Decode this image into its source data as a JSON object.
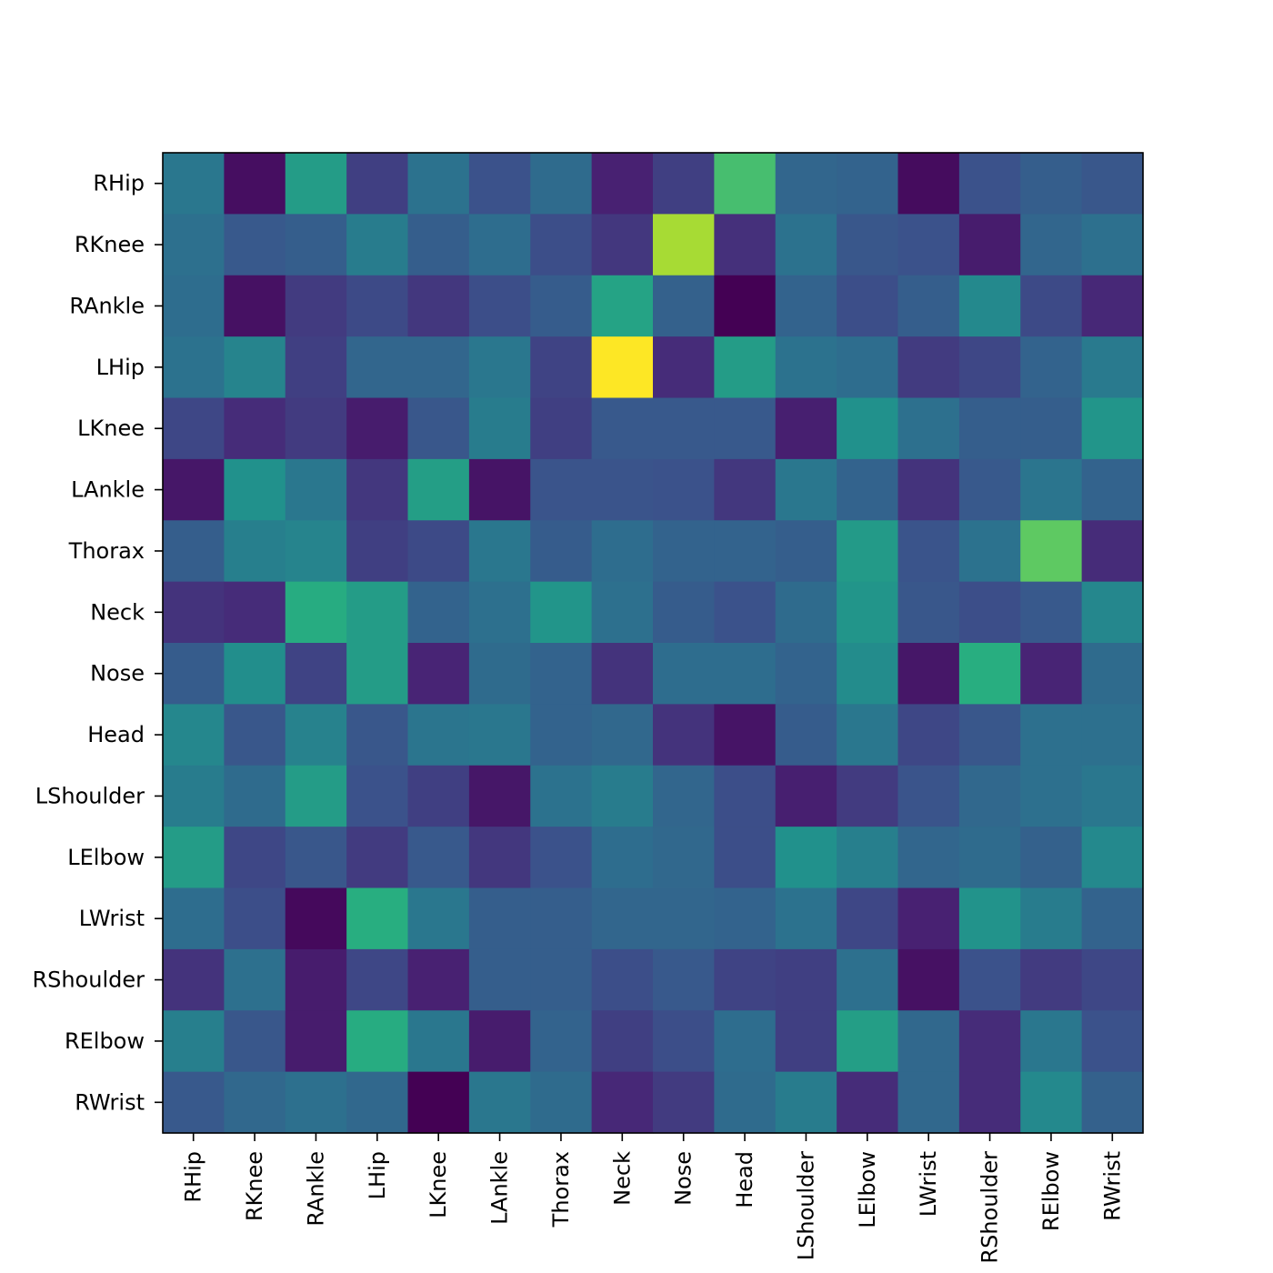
{
  "chart_data": {
    "type": "heatmap",
    "title": "",
    "xlabel": "",
    "ylabel": "",
    "colormap": "viridis",
    "value_range": [
      0,
      1
    ],
    "colorbar": false,
    "grid": false,
    "rows": [
      "RHip",
      "RKnee",
      "RAnkle",
      "LHip",
      "LKnee",
      "LAnkle",
      "Thorax",
      "Neck",
      "Nose",
      "Head",
      "LShoulder",
      "LElbow",
      "LWrist",
      "RShoulder",
      "RElbow",
      "RWrist"
    ],
    "columns": [
      "RHip",
      "RKnee",
      "RAnkle",
      "LHip",
      "LKnee",
      "LAnkle",
      "Thorax",
      "Neck",
      "Nose",
      "Head",
      "LShoulder",
      "LElbow",
      "LWrist",
      "RShoulder",
      "RElbow",
      "RWrist"
    ],
    "values": [
      [
        0.4,
        0.05,
        0.55,
        0.2,
        0.38,
        0.25,
        0.35,
        0.12,
        0.2,
        0.7,
        0.33,
        0.32,
        0.04,
        0.25,
        0.3,
        0.27
      ],
      [
        0.37,
        0.28,
        0.3,
        0.42,
        0.3,
        0.36,
        0.24,
        0.18,
        0.87,
        0.16,
        0.38,
        0.27,
        0.25,
        0.1,
        0.33,
        0.37
      ],
      [
        0.36,
        0.06,
        0.19,
        0.23,
        0.18,
        0.24,
        0.29,
        0.58,
        0.31,
        0.0,
        0.32,
        0.24,
        0.3,
        0.47,
        0.23,
        0.14
      ],
      [
        0.38,
        0.45,
        0.2,
        0.33,
        0.33,
        0.4,
        0.21,
        1.0,
        0.15,
        0.55,
        0.38,
        0.36,
        0.19,
        0.22,
        0.32,
        0.41
      ],
      [
        0.22,
        0.15,
        0.19,
        0.1,
        0.27,
        0.42,
        0.2,
        0.28,
        0.28,
        0.28,
        0.11,
        0.5,
        0.37,
        0.3,
        0.3,
        0.52
      ],
      [
        0.08,
        0.5,
        0.4,
        0.18,
        0.56,
        0.07,
        0.26,
        0.26,
        0.25,
        0.18,
        0.4,
        0.32,
        0.17,
        0.28,
        0.39,
        0.32
      ],
      [
        0.3,
        0.43,
        0.45,
        0.2,
        0.23,
        0.4,
        0.29,
        0.36,
        0.32,
        0.32,
        0.3,
        0.54,
        0.26,
        0.38,
        0.75,
        0.15
      ],
      [
        0.17,
        0.15,
        0.62,
        0.55,
        0.32,
        0.37,
        0.52,
        0.37,
        0.29,
        0.25,
        0.35,
        0.52,
        0.27,
        0.24,
        0.28,
        0.46
      ],
      [
        0.29,
        0.49,
        0.21,
        0.55,
        0.13,
        0.35,
        0.32,
        0.17,
        0.36,
        0.36,
        0.32,
        0.48,
        0.08,
        0.63,
        0.13,
        0.35
      ],
      [
        0.46,
        0.27,
        0.44,
        0.27,
        0.39,
        0.4,
        0.32,
        0.34,
        0.17,
        0.07,
        0.29,
        0.4,
        0.22,
        0.27,
        0.37,
        0.37
      ],
      [
        0.42,
        0.35,
        0.55,
        0.25,
        0.2,
        0.08,
        0.38,
        0.42,
        0.33,
        0.24,
        0.11,
        0.19,
        0.26,
        0.34,
        0.37,
        0.4
      ],
      [
        0.55,
        0.22,
        0.27,
        0.19,
        0.28,
        0.18,
        0.25,
        0.36,
        0.34,
        0.24,
        0.5,
        0.43,
        0.33,
        0.35,
        0.31,
        0.47
      ],
      [
        0.36,
        0.24,
        0.03,
        0.63,
        0.4,
        0.3,
        0.3,
        0.33,
        0.33,
        0.32,
        0.38,
        0.22,
        0.12,
        0.51,
        0.42,
        0.32
      ],
      [
        0.17,
        0.37,
        0.1,
        0.22,
        0.12,
        0.3,
        0.3,
        0.24,
        0.28,
        0.21,
        0.2,
        0.37,
        0.06,
        0.25,
        0.19,
        0.22
      ],
      [
        0.43,
        0.27,
        0.1,
        0.62,
        0.4,
        0.1,
        0.32,
        0.2,
        0.24,
        0.36,
        0.2,
        0.56,
        0.34,
        0.15,
        0.4,
        0.25
      ],
      [
        0.28,
        0.34,
        0.37,
        0.34,
        0.0,
        0.4,
        0.35,
        0.14,
        0.19,
        0.35,
        0.42,
        0.15,
        0.34,
        0.15,
        0.47,
        0.31
      ]
    ]
  }
}
